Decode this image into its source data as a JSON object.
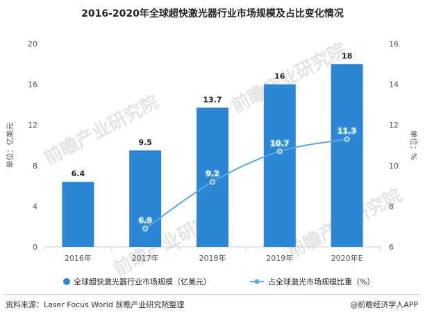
{
  "title": "2016-2020年全球超快激光器行业市场规模及占比变化情况",
  "watermark": "前瞻产业研究院",
  "source": "资料来源：Laser Focus World 前瞻产业研究院整理",
  "credit": "@前瞻经济学人APP",
  "colors": {
    "bar": "#2b86d6",
    "line": "#5aa8df",
    "marker": "#5aa8df"
  },
  "chart_data": {
    "type": "bar",
    "categories": [
      "2016年",
      "2017年",
      "2018年",
      "2019年",
      "2020年E"
    ],
    "series": [
      {
        "name": "全球超快激光器行业市场规模（亿美元）",
        "type": "bar",
        "axis": "left",
        "values": [
          6.4,
          9.5,
          13.7,
          16,
          18
        ],
        "labels": [
          "6.4",
          "9.5",
          "13.7",
          "16",
          "18"
        ]
      },
      {
        "name": "占全球激光市场规模比重（%）",
        "type": "line",
        "axis": "right",
        "values": [
          null,
          6.9,
          9.2,
          10.7,
          11.3
        ],
        "labels": [
          "",
          "6.9",
          "9.2",
          "10.7",
          "11.3"
        ]
      }
    ],
    "ylabel_left": "单位：亿美元",
    "ylabel_right": "单位：%",
    "ylim_left": [
      0,
      20
    ],
    "ylim_right": [
      6,
      16
    ],
    "yticks_left": [
      "0",
      "4",
      "8",
      "12",
      "16",
      "20"
    ],
    "yticks_right": [
      "6",
      "8",
      "10",
      "12",
      "14",
      "16"
    ],
    "grid": false,
    "legend_position": "bottom"
  }
}
